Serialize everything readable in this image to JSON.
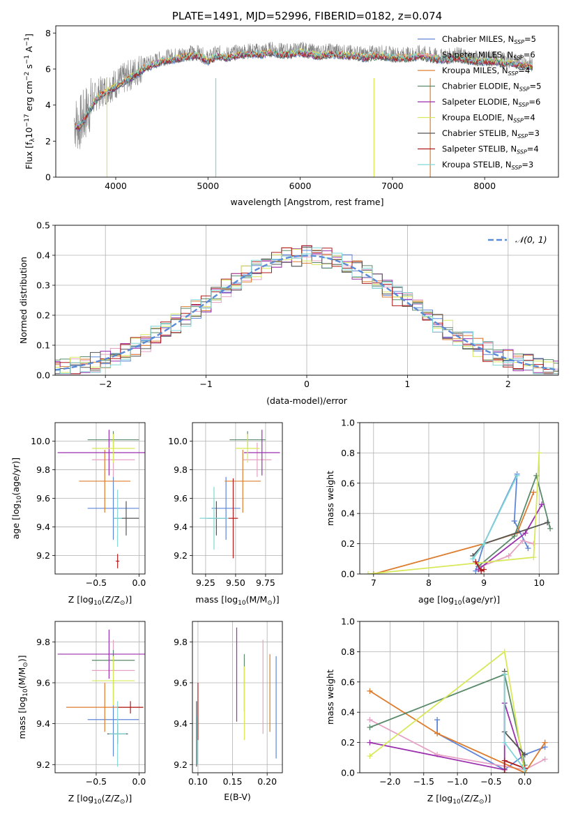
{
  "chart_data": [
    {
      "type": "line",
      "title": "PLATE=1491, MJD=52996, FIBERID=0182, z=0.074",
      "xlabel": "wavelength [Angstrom, rest frame]",
      "ylabel": "Flux [f",
      "ylabel_sub": "λ",
      "ylabel_rest": "10",
      "ylabel_exp1": "−17",
      "ylabel_mid": " erg cm",
      "ylabel_exp2": "−2",
      "ylabel_mid2": " s",
      "ylabel_exp3": "−1",
      "ylabel_end": " A",
      "ylabel_exp4": "−1",
      "ylabel_close": "]",
      "xlim": [
        3350,
        8800
      ],
      "ylim": [
        0,
        8.4
      ],
      "xticks": [
        "4000",
        "5000",
        "6000",
        "7000",
        "8000"
      ],
      "yticks": [
        "0",
        "2",
        "4",
        "6",
        "8"
      ],
      "spectrum": {
        "x": [
          3550,
          3600,
          3650,
          3700,
          3800,
          3900,
          4000,
          4100,
          4200,
          4300,
          4400,
          4500,
          4600,
          4700,
          4800,
          4900,
          5000,
          5100,
          5200,
          5300,
          5400,
          5500,
          5600,
          5700,
          5800,
          5900,
          6000,
          6100,
          6200,
          6300,
          6400,
          6500,
          6600,
          6700,
          6800,
          6900,
          7000,
          7100,
          7200,
          7300,
          7400,
          7500,
          7600,
          7700,
          7800,
          7900,
          8000,
          8100,
          8200,
          8300,
          8400,
          8500
        ],
        "y": [
          3.1,
          2.9,
          3.3,
          3.8,
          4.6,
          4.9,
          5.2,
          5.5,
          5.8,
          6.2,
          6.4,
          6.6,
          6.7,
          6.8,
          6.9,
          6.9,
          6.6,
          6.9,
          6.8,
          6.9,
          7.0,
          7.0,
          7.0,
          7.1,
          7.0,
          7.0,
          7.1,
          7.0,
          6.9,
          7.0,
          7.0,
          6.9,
          6.9,
          6.8,
          6.9,
          6.9,
          6.8,
          6.8,
          6.8,
          6.9,
          6.8,
          6.7,
          6.7,
          6.8,
          6.7,
          6.6,
          6.6,
          6.6,
          6.5,
          6.5,
          6.4,
          6.3
        ]
      },
      "legend": [
        {
          "imf": "Chabrier",
          "lib": "MILES",
          "n": "5",
          "color": "#5d85d8"
        },
        {
          "imf": "Salpeter",
          "lib": "MILES",
          "n": "6",
          "color": "#e6a0c4"
        },
        {
          "imf": "Kroupa",
          "lib": "MILES",
          "n": "4",
          "color": "#dd7c2d"
        },
        {
          "imf": "Chabrier",
          "lib": "ELODIE",
          "n": "5",
          "color": "#5a8a6a"
        },
        {
          "imf": "Salpeter",
          "lib": "ELODIE",
          "n": "6",
          "color": "#9b2fae"
        },
        {
          "imf": "Kroupa",
          "lib": "ELODIE",
          "n": "4",
          "color": "#d8e85a"
        },
        {
          "imf": "Chabrier",
          "lib": "STELIB",
          "n": "3",
          "color": "#555555"
        },
        {
          "imf": "Salpeter",
          "lib": "STELIB",
          "n": "4",
          "color": "#b01a1a"
        },
        {
          "imf": "Kroupa",
          "lib": "STELIB",
          "n": "3",
          "color": "#7fd6d6"
        }
      ],
      "legend_n_label": "N",
      "legend_n_sub": "SSP",
      "legend_placement": "top-right"
    },
    {
      "type": "line",
      "xlabel": "(data-model)/error",
      "ylabel": "Normed distribution",
      "xlim": [
        -2.5,
        2.5
      ],
      "ylim": [
        0,
        0.5
      ],
      "xticks": [
        "−2",
        "−1",
        "0",
        "1",
        "2"
      ],
      "yticks": [
        "0.0",
        "0.1",
        "0.2",
        "0.3",
        "0.4",
        "0.5"
      ],
      "grid": true,
      "legend": "𝒩(0, 1)",
      "legend_placement": "top-right",
      "gaussian": {
        "mean": 0,
        "sigma": 1
      }
    },
    {
      "type": "scatter",
      "xlabel": "Z [log",
      "xlabel_sub": "10",
      "xlabel_rest": "(Z/Z",
      "xlabel_sub2": "⊙",
      "xlabel_end": ")]",
      "ylabel": "age  [log",
      "ylabel_sub": "10",
      "ylabel_rest": "(age/yr)]",
      "xlim": [
        -0.98,
        0.07
      ],
      "ylim": [
        9.07,
        10.13
      ],
      "xticks": [
        "−0.5",
        "0.0"
      ],
      "yticks": [
        "9.2",
        "9.4",
        "9.6",
        "9.8",
        "10.0"
      ],
      "grid": true,
      "points": [
        {
          "x": -0.3,
          "y": 9.53,
          "xerr": 0.3,
          "yerr": 0.22,
          "color": "#5d85d8"
        },
        {
          "x": -0.3,
          "y": 9.87,
          "xerr": 0.25,
          "yerr": 0.12,
          "color": "#e6a0c4"
        },
        {
          "x": -0.4,
          "y": 9.72,
          "xerr": 0.3,
          "yerr": 0.22,
          "color": "#dd7c2d"
        },
        {
          "x": -0.3,
          "y": 10.01,
          "xerr": 0.3,
          "yerr": 0.06,
          "color": "#5a8a6a"
        },
        {
          "x": -0.35,
          "y": 9.92,
          "xerr": 0.6,
          "yerr": 0.16,
          "color": "#9b2fae"
        },
        {
          "x": -0.3,
          "y": 9.95,
          "xerr": 0.25,
          "yerr": 0.1,
          "color": "#d8e85a"
        },
        {
          "x": -0.15,
          "y": 9.46,
          "xerr": 0.15,
          "yerr": 0.12,
          "color": "#555555"
        },
        {
          "x": -0.25,
          "y": 9.16,
          "xerr": 0.02,
          "yerr": 0.05,
          "color": "#b01a1a"
        },
        {
          "x": -0.25,
          "y": 9.46,
          "xerr": 0.05,
          "yerr": 0.2,
          "color": "#7fd6d6"
        }
      ]
    },
    {
      "type": "scatter",
      "xlabel": "mass [log",
      "xlabel_sub": "10",
      "xlabel_rest": "(M/M",
      "xlabel_sub2": "⊙",
      "xlabel_end": ")]",
      "xlim": [
        9.14,
        9.89
      ],
      "ylim": [
        9.07,
        10.13
      ],
      "xticks": [
        "9.25",
        "9.50",
        "9.75"
      ],
      "yticks": [
        "9.2",
        "9.4",
        "9.6",
        "9.8",
        "10.0"
      ],
      "grid": true,
      "points": [
        {
          "x": 9.42,
          "y": 9.53,
          "xerr": 0.12,
          "yerr": 0.22,
          "color": "#5d85d8"
        },
        {
          "x": 9.68,
          "y": 9.87,
          "xerr": 0.12,
          "yerr": 0.12,
          "color": "#e6a0c4"
        },
        {
          "x": 9.56,
          "y": 9.72,
          "xerr": 0.15,
          "yerr": 0.22,
          "color": "#dd7c2d"
        },
        {
          "x": 9.6,
          "y": 10.01,
          "xerr": 0.15,
          "yerr": 0.06,
          "color": "#5a8a6a"
        },
        {
          "x": 9.72,
          "y": 9.92,
          "xerr": 0.15,
          "yerr": 0.16,
          "color": "#9b2fae"
        },
        {
          "x": 9.6,
          "y": 9.95,
          "xerr": 0.1,
          "yerr": 0.1,
          "color": "#d8e85a"
        },
        {
          "x": 9.34,
          "y": 9.46,
          "xerr": 0.08,
          "yerr": 0.12,
          "color": "#555555"
        },
        {
          "x": 9.48,
          "y": 9.46,
          "xerr": 0.04,
          "yerr": 0.28,
          "color": "#b01a1a"
        },
        {
          "x": 9.32,
          "y": 9.46,
          "xerr": 0.12,
          "yerr": 0.22,
          "color": "#7fd6d6"
        }
      ]
    },
    {
      "type": "line",
      "xlabel": "age  [log",
      "xlabel_sub": "10",
      "xlabel_rest": "(age/yr)]",
      "ylabel": "mass weight",
      "xlim": [
        6.75,
        10.35
      ],
      "ylim": [
        0,
        1
      ],
      "xticks": [
        "7",
        "8",
        "9",
        "10"
      ],
      "yticks": [
        "0.0",
        "0.2",
        "0.4",
        "0.6",
        "0.8",
        "1.0"
      ],
      "grid": true,
      "series": [
        {
          "color": "#5d85d8",
          "x": [
            8.85,
            9.0,
            9.6,
            9.55,
            9.8
          ],
          "y": [
            0.02,
            0.2,
            0.66,
            0.35,
            0.17
          ]
        },
        {
          "color": "#e6a0c4",
          "x": [
            8.95,
            9.45,
            9.7,
            9.9
          ],
          "y": [
            0.05,
            0.12,
            0.22,
            0.2
          ]
        },
        {
          "color": "#dd7c2d",
          "x": [
            7.0,
            9.0,
            9.6,
            9.9
          ],
          "y": [
            0.0,
            0.2,
            0.27,
            0.54
          ]
        },
        {
          "color": "#5a8a6a",
          "x": [
            8.9,
            9.55,
            9.95,
            10.2
          ],
          "y": [
            0.05,
            0.25,
            0.65,
            0.3
          ]
        },
        {
          "color": "#9b2fae",
          "x": [
            8.9,
            9.75,
            10.05
          ],
          "y": [
            0.03,
            0.27,
            0.46
          ]
        },
        {
          "color": "#d8e85a",
          "x": [
            6.9,
            9.9,
            10.0
          ],
          "y": [
            0.0,
            0.11,
            0.8
          ]
        },
        {
          "color": "#555555",
          "x": [
            8.8,
            9.0,
            10.15
          ],
          "y": [
            0.12,
            0.2,
            0.34
          ]
        },
        {
          "color": "#b01a1a",
          "x": [
            8.85,
            8.95,
            9.0
          ],
          "y": [
            0.08,
            0.02,
            0.03
          ]
        },
        {
          "color": "#7fd6d6",
          "x": [
            8.8,
            9.0,
            9.6
          ],
          "y": [
            0.1,
            0.2,
            0.65
          ]
        }
      ]
    },
    {
      "type": "scatter",
      "xlabel": "Z [log",
      "xlabel_sub": "10",
      "xlabel_rest": "(Z/Z",
      "xlabel_sub2": "⊙",
      "xlabel_end": ")]",
      "ylabel": "mass [log",
      "ylabel_sub": "10",
      "ylabel_rest": "(M/M",
      "ylabel_sub2": "⊙",
      "ylabel_end": ")]",
      "xlim": [
        -0.98,
        0.07
      ],
      "ylim": [
        9.16,
        9.9
      ],
      "xticks": [
        "−0.5",
        "0.0"
      ],
      "yticks": [
        "9.2",
        "9.4",
        "9.6",
        "9.8"
      ],
      "grid": true,
      "points": [
        {
          "x": -0.3,
          "y": 9.42,
          "xerr": 0.3,
          "yerr": 0.18,
          "color": "#5d85d8"
        },
        {
          "x": -0.3,
          "y": 9.66,
          "xerr": 0.25,
          "yerr": 0.15,
          "color": "#e6a0c4"
        },
        {
          "x": -0.4,
          "y": 9.48,
          "xerr": 0.45,
          "yerr": 0.12,
          "color": "#dd7c2d"
        },
        {
          "x": -0.3,
          "y": 9.71,
          "xerr": 0.25,
          "yerr": 0.05,
          "color": "#5a8a6a"
        },
        {
          "x": -0.35,
          "y": 9.74,
          "xerr": 0.6,
          "yerr": 0.12,
          "color": "#9b2fae"
        },
        {
          "x": -0.3,
          "y": 9.61,
          "xerr": 0.25,
          "yerr": 0.12,
          "color": "#d8e85a"
        },
        {
          "x": -0.25,
          "y": 9.35,
          "xerr": 0.12,
          "yerr": 0.05,
          "color": "#555555"
        },
        {
          "x": -0.1,
          "y": 9.48,
          "xerr": 0.15,
          "yerr": 0.03,
          "color": "#b01a1a"
        },
        {
          "x": -0.25,
          "y": 9.35,
          "xerr": 0.1,
          "yerr": 0.16,
          "color": "#7fd6d6"
        }
      ]
    },
    {
      "type": "scatter",
      "xlabel": "E(B-V)",
      "xlim": [
        0.092,
        0.222
      ],
      "ylim": [
        9.16,
        9.9
      ],
      "xticks": [
        "0.10",
        "0.15",
        "0.20"
      ],
      "yticks": [
        "9.2",
        "9.4",
        "9.6",
        "9.8"
      ],
      "grid": true,
      "points": [
        {
          "x": 0.213,
          "y": 9.48,
          "yerr": 0.25,
          "color": "#5d85d8"
        },
        {
          "x": 0.194,
          "y": 9.58,
          "yerr": 0.23,
          "color": "#e6a0c4"
        },
        {
          "x": 0.204,
          "y": 9.55,
          "yerr": 0.19,
          "color": "#dd7c2d"
        },
        {
          "x": 0.167,
          "y": 9.6,
          "yerr": 0.14,
          "color": "#5a8a6a"
        },
        {
          "x": 0.156,
          "y": 9.64,
          "yerr": 0.23,
          "color": "#9b2fae"
        },
        {
          "x": 0.167,
          "y": 9.5,
          "yerr": 0.18,
          "color": "#d8e85a"
        },
        {
          "x": 0.098,
          "y": 9.35,
          "yerr": 0.16,
          "color": "#555555"
        },
        {
          "x": 0.1,
          "y": 9.46,
          "yerr": 0.14,
          "color": "#b01a1a"
        },
        {
          "x": 0.099,
          "y": 9.32,
          "yerr": 0.12,
          "color": "#7fd6d6"
        }
      ]
    },
    {
      "type": "line",
      "xlabel": "Z [log",
      "xlabel_sub": "10",
      "xlabel_rest": "(Z/Z",
      "xlabel_sub2": "⊙",
      "xlabel_end": ")]",
      "ylabel": "mass weight",
      "xlim": [
        -2.45,
        0.5
      ],
      "ylim": [
        0,
        1
      ],
      "xticks": [
        "−2.0",
        "−1.5",
        "−1.0",
        "−0.5",
        "0.0"
      ],
      "yticks": [
        "0.0",
        "0.2",
        "0.4",
        "0.6",
        "0.8",
        "1.0"
      ],
      "grid": true,
      "series": [
        {
          "color": "#5d85d8",
          "x": [
            -1.3,
            -1.3,
            -0.3,
            0.0,
            0.3
          ],
          "y": [
            0.35,
            0.26,
            0.02,
            0.12,
            0.17
          ]
        },
        {
          "color": "#e6a0c4",
          "x": [
            -2.3,
            -1.3,
            0.0,
            0.3
          ],
          "y": [
            0.35,
            0.12,
            0.02,
            0.09
          ]
        },
        {
          "color": "#dd7c2d",
          "x": [
            -2.3,
            -1.3,
            0.0,
            0.3
          ],
          "y": [
            0.54,
            0.26,
            0.0,
            0.2
          ]
        },
        {
          "color": "#5a8a6a",
          "x": [
            -2.3,
            -0.3,
            0.0
          ],
          "y": [
            0.3,
            0.65,
            0.05
          ]
        },
        {
          "color": "#9b2fae",
          "x": [
            -2.3,
            -0.3,
            -0.3,
            0.0
          ],
          "y": [
            0.2,
            0.02,
            0.46,
            0.03
          ]
        },
        {
          "color": "#d8e85a",
          "x": [
            -2.3,
            -0.3,
            0.0
          ],
          "y": [
            0.11,
            0.8,
            0.0
          ]
        },
        {
          "color": "#555555",
          "x": [
            -0.3,
            -0.3,
            0.0
          ],
          "y": [
            0.67,
            0.27,
            0.12
          ]
        },
        {
          "color": "#b01a1a",
          "x": [
            -0.3,
            -0.3,
            0.0
          ],
          "y": [
            0.0,
            0.08,
            0.03
          ]
        },
        {
          "color": "#7fd6d6",
          "x": [
            -0.3,
            -0.3,
            0.0
          ],
          "y": [
            0.65,
            0.2,
            0.02
          ]
        }
      ]
    }
  ]
}
